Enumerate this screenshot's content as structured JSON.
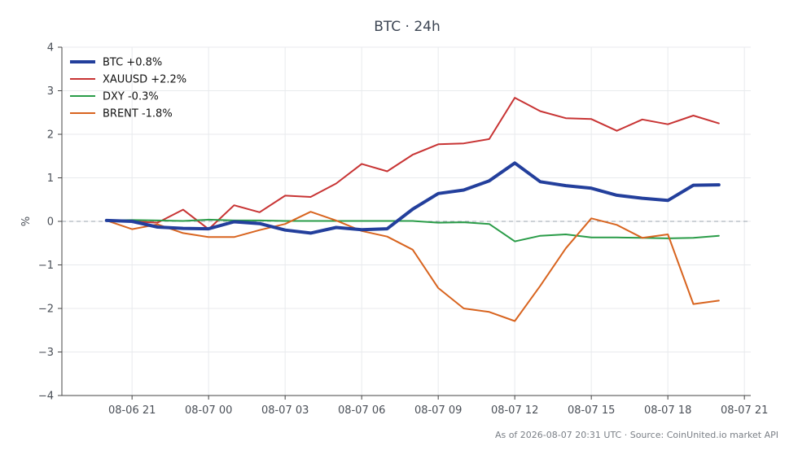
{
  "chart_data": {
    "type": "line",
    "title": "BTC · 24h",
    "xlabel": "",
    "ylabel": "%",
    "ylim": [
      -4,
      4
    ],
    "xlim": [
      "2026-08-06 18:15",
      "2026-08-07 21:15"
    ],
    "yticks": [
      -4,
      -3,
      -2,
      -1,
      0,
      1,
      2,
      3,
      4
    ],
    "ytick_labels": [
      "−4",
      "−3",
      "−2",
      "−1",
      "0",
      "1",
      "2",
      "3",
      "4"
    ],
    "xticks": [
      "2026-08-06 21:00",
      "2026-08-07 00:00",
      "2026-08-07 03:00",
      "2026-08-07 06:00",
      "2026-08-07 09:00",
      "2026-08-07 12:00",
      "2026-08-07 15:00",
      "2026-08-07 18:00",
      "2026-08-07 21:00"
    ],
    "xtick_labels": [
      "08-06 21",
      "08-07 00",
      "08-07 03",
      "08-07 06",
      "08-07 09",
      "08-07 12",
      "08-07 15",
      "08-07 18",
      "08-07 21"
    ],
    "grid": true,
    "zero_line": true,
    "legend_position": "top-left",
    "x": [
      "2026-08-06 20:00",
      "2026-08-06 21:00",
      "2026-08-06 22:00",
      "2026-08-06 23:00",
      "2026-08-07 00:00",
      "2026-08-07 01:00",
      "2026-08-07 02:00",
      "2026-08-07 03:00",
      "2026-08-07 04:00",
      "2026-08-07 05:00",
      "2026-08-07 06:00",
      "2026-08-07 07:00",
      "2026-08-07 08:00",
      "2026-08-07 09:00",
      "2026-08-07 10:00",
      "2026-08-07 11:00",
      "2026-08-07 12:00",
      "2026-08-07 13:00",
      "2026-08-07 14:00",
      "2026-08-07 15:00",
      "2026-08-07 16:00",
      "2026-08-07 17:00",
      "2026-08-07 18:00",
      "2026-08-07 19:00",
      "2026-08-07 20:00"
    ],
    "series": [
      {
        "name": "BTC +0.8%",
        "color": "#233f9c",
        "width": 4,
        "values": [
          0.02,
          0.0,
          -0.13,
          -0.16,
          -0.17,
          -0.01,
          -0.05,
          -0.2,
          -0.27,
          -0.14,
          -0.19,
          -0.17,
          0.28,
          0.64,
          0.72,
          0.93,
          1.34,
          0.91,
          0.82,
          0.76,
          0.6,
          0.53,
          0.48,
          0.83,
          0.84
        ]
      },
      {
        "name": "XAUUSD +2.2%",
        "color": "#c83434",
        "width": 2,
        "values": [
          0.02,
          0.0,
          -0.03,
          0.27,
          -0.18,
          0.37,
          0.21,
          0.59,
          0.56,
          0.87,
          1.32,
          1.15,
          1.53,
          1.77,
          1.79,
          1.89,
          2.84,
          2.53,
          2.37,
          2.35,
          2.08,
          2.34,
          2.23,
          2.43,
          2.25
        ]
      },
      {
        "name": "DXY -0.3%",
        "color": "#2a9c48",
        "width": 2,
        "values": [
          0.02,
          0.03,
          0.02,
          0.01,
          0.04,
          0.02,
          0.02,
          0.01,
          0.01,
          0.01,
          0.01,
          0.01,
          0.01,
          -0.03,
          -0.02,
          -0.06,
          -0.46,
          -0.33,
          -0.3,
          -0.37,
          -0.37,
          -0.38,
          -0.39,
          -0.38,
          -0.33
        ]
      },
      {
        "name": "BRENT -1.8%",
        "color": "#d8641f",
        "width": 2,
        "values": [
          0.02,
          -0.18,
          -0.07,
          -0.27,
          -0.36,
          -0.36,
          -0.2,
          -0.06,
          0.22,
          0.02,
          -0.22,
          -0.35,
          -0.65,
          -1.53,
          -2.0,
          -2.08,
          -2.29,
          -1.48,
          -0.62,
          0.07,
          -0.08,
          -0.38,
          -0.3,
          -1.9,
          -1.82
        ]
      }
    ]
  },
  "footer": "As of 2026-08-07 20:31 UTC · Source: CoinUnited.io market API"
}
